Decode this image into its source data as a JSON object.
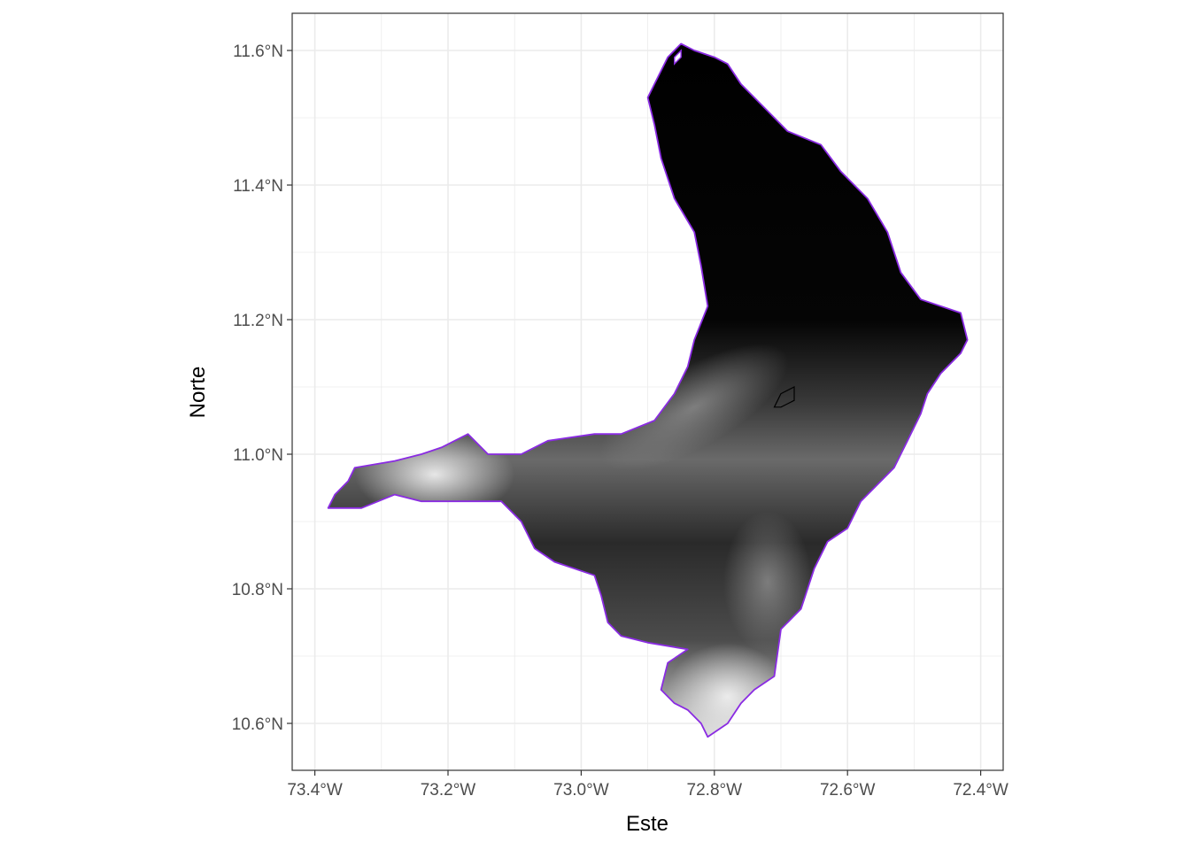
{
  "chart_data": {
    "type": "raster_map",
    "xlabel": "Este",
    "ylabel": "Norte",
    "xlim": [
      -73.43,
      -72.37
    ],
    "ylim": [
      10.53,
      11.66
    ],
    "x_ticks": [
      {
        "value": -73.4,
        "label": "73.4°W"
      },
      {
        "value": -73.2,
        "label": "73.2°W"
      },
      {
        "value": -73.0,
        "label": "73.0°W"
      },
      {
        "value": -72.8,
        "label": "72.8°W"
      },
      {
        "value": -72.6,
        "label": "72.6°W"
      },
      {
        "value": -72.4,
        "label": "72.4°W"
      }
    ],
    "y_ticks": [
      {
        "value": 10.6,
        "label": "10.6°N"
      },
      {
        "value": 10.8,
        "label": "10.8°N"
      },
      {
        "value": 11.0,
        "label": "11.0°N"
      },
      {
        "value": 11.2,
        "label": "11.2°N"
      },
      {
        "value": 11.4,
        "label": "11.4°N"
      },
      {
        "value": 11.6,
        "label": "11.6°N"
      }
    ],
    "grid": true,
    "legend": "none",
    "boundary_color": "#8a2be2",
    "lake_outline_color": "#000000",
    "panel_border_color": "#333333",
    "grid_color": "#ebebeb",
    "raster_palette": [
      "#000000",
      "#ffffff"
    ],
    "boundary": [
      [
        -72.85,
        11.61
      ],
      [
        -72.83,
        11.6
      ],
      [
        -72.8,
        11.59
      ],
      [
        -72.78,
        11.58
      ],
      [
        -72.76,
        11.55
      ],
      [
        -72.72,
        11.51
      ],
      [
        -72.69,
        11.48
      ],
      [
        -72.64,
        11.46
      ],
      [
        -72.61,
        11.42
      ],
      [
        -72.57,
        11.38
      ],
      [
        -72.54,
        11.33
      ],
      [
        -72.52,
        11.27
      ],
      [
        -72.49,
        11.23
      ],
      [
        -72.43,
        11.21
      ],
      [
        -72.42,
        11.17
      ],
      [
        -72.43,
        11.15
      ],
      [
        -72.46,
        11.12
      ],
      [
        -72.48,
        11.09
      ],
      [
        -72.49,
        11.06
      ],
      [
        -72.51,
        11.02
      ],
      [
        -72.53,
        10.98
      ],
      [
        -72.56,
        10.95
      ],
      [
        -72.58,
        10.93
      ],
      [
        -72.6,
        10.89
      ],
      [
        -72.63,
        10.87
      ],
      [
        -72.65,
        10.83
      ],
      [
        -72.67,
        10.77
      ],
      [
        -72.7,
        10.74
      ],
      [
        -72.71,
        10.67
      ],
      [
        -72.74,
        10.65
      ],
      [
        -72.76,
        10.63
      ],
      [
        -72.78,
        10.6
      ],
      [
        -72.81,
        10.58
      ],
      [
        -72.82,
        10.6
      ],
      [
        -72.84,
        10.62
      ],
      [
        -72.86,
        10.63
      ],
      [
        -72.88,
        10.65
      ],
      [
        -72.87,
        10.69
      ],
      [
        -72.84,
        10.71
      ],
      [
        -72.9,
        10.72
      ],
      [
        -72.94,
        10.73
      ],
      [
        -72.96,
        10.75
      ],
      [
        -72.97,
        10.79
      ],
      [
        -72.98,
        10.82
      ],
      [
        -73.04,
        10.84
      ],
      [
        -73.07,
        10.86
      ],
      [
        -73.09,
        10.9
      ],
      [
        -73.12,
        10.93
      ],
      [
        -73.17,
        10.93
      ],
      [
        -73.24,
        10.93
      ],
      [
        -73.28,
        10.94
      ],
      [
        -73.33,
        10.92
      ],
      [
        -73.38,
        10.92
      ],
      [
        -73.37,
        10.94
      ],
      [
        -73.35,
        10.96
      ],
      [
        -73.34,
        10.98
      ],
      [
        -73.28,
        10.99
      ],
      [
        -73.24,
        11.0
      ],
      [
        -73.21,
        11.01
      ],
      [
        -73.17,
        11.03
      ],
      [
        -73.14,
        11.0
      ],
      [
        -73.09,
        11.0
      ],
      [
        -73.05,
        11.02
      ],
      [
        -72.98,
        11.03
      ],
      [
        -72.94,
        11.03
      ],
      [
        -72.89,
        11.05
      ],
      [
        -72.86,
        11.09
      ],
      [
        -72.84,
        11.13
      ],
      [
        -72.83,
        11.17
      ],
      [
        -72.81,
        11.22
      ],
      [
        -72.82,
        11.28
      ],
      [
        -72.83,
        11.33
      ],
      [
        -72.86,
        11.38
      ],
      [
        -72.88,
        11.44
      ],
      [
        -72.89,
        11.49
      ],
      [
        -72.9,
        11.53
      ],
      [
        -72.89,
        11.55
      ],
      [
        -72.87,
        11.59
      ]
    ],
    "lake": [
      [
        -72.7,
        11.09
      ],
      [
        -72.68,
        11.1
      ],
      [
        -72.68,
        11.08
      ],
      [
        -72.7,
        11.07
      ],
      [
        -72.71,
        11.07
      ]
    ],
    "island": [
      [
        -72.86,
        11.59
      ],
      [
        -72.85,
        11.6
      ],
      [
        -72.85,
        11.59
      ],
      [
        -72.86,
        11.58
      ]
    ]
  }
}
